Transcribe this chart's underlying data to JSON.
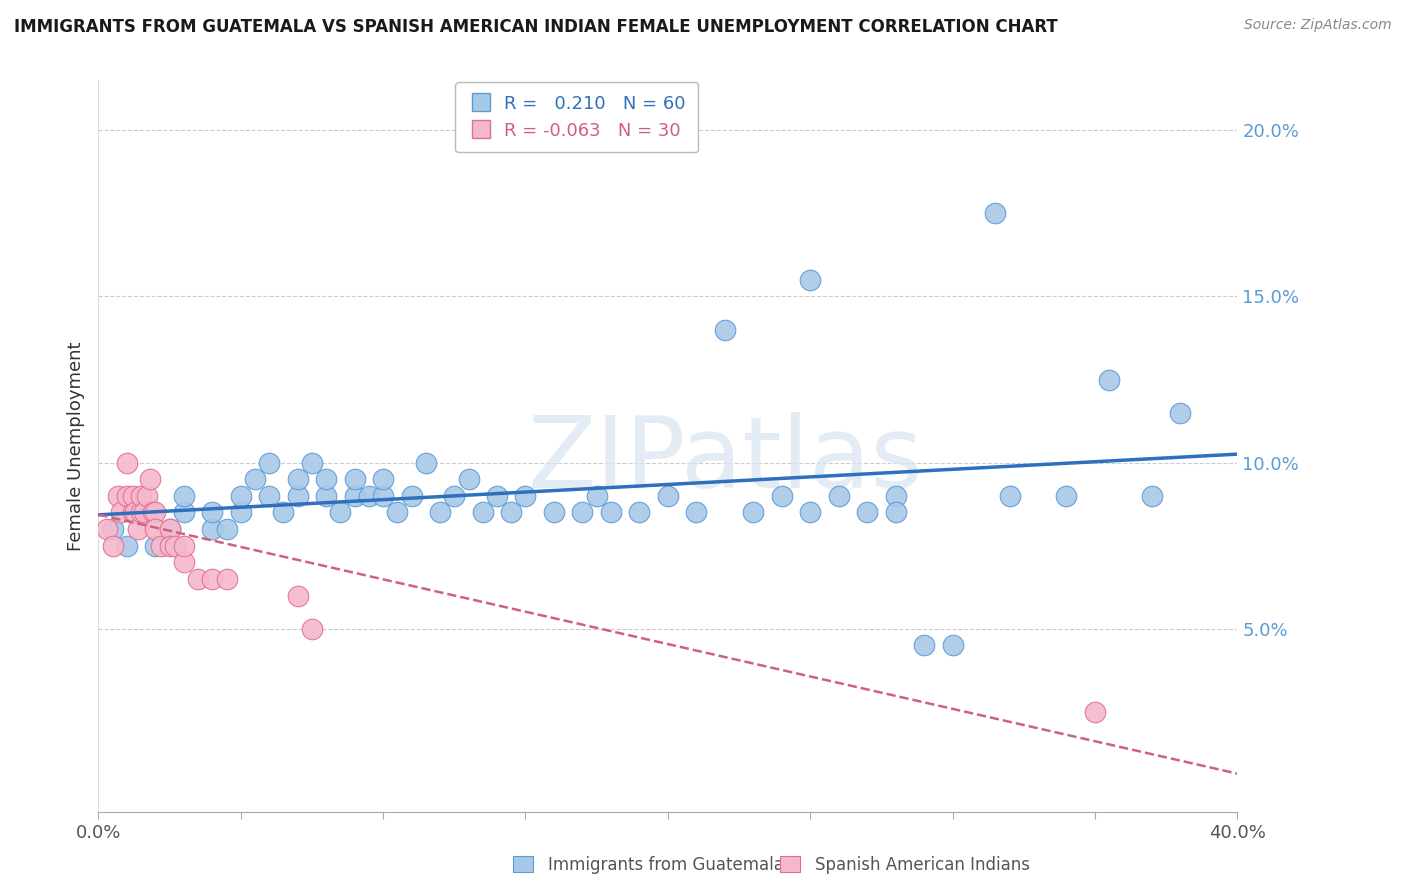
{
  "title": "IMMIGRANTS FROM GUATEMALA VS SPANISH AMERICAN INDIAN FEMALE UNEMPLOYMENT CORRELATION CHART",
  "source": "Source: ZipAtlas.com",
  "ylabel": "Female Unemployment",
  "ytick_vals": [
    0.05,
    0.1,
    0.15,
    0.2
  ],
  "ytick_labels": [
    "5.0%",
    "10.0%",
    "15.0%",
    "20.0%"
  ],
  "xtick_vals": [
    0.0,
    0.05,
    0.1,
    0.15,
    0.2,
    0.25,
    0.3,
    0.35,
    0.4
  ],
  "xlim": [
    0.0,
    0.4
  ],
  "ylim": [
    -0.005,
    0.215
  ],
  "blue_R": 0.21,
  "blue_N": 60,
  "pink_R": -0.063,
  "pink_N": 30,
  "legend_label_blue": "Immigrants from Guatemala",
  "legend_label_pink": "Spanish American Indians",
  "watermark": "ZIPatlas",
  "blue_color": "#a8c8e8",
  "blue_edge_color": "#5b9bd5",
  "blue_line_color": "#2e6fbe",
  "pink_color": "#f5b8cb",
  "pink_edge_color": "#e07090",
  "pink_line_color": "#d06080",
  "background_color": "#ffffff",
  "grid_color": "#cccccc",
  "ytick_color": "#5b9bd5",
  "blue_scatter_x": [
    0.005,
    0.01,
    0.02,
    0.025,
    0.03,
    0.03,
    0.04,
    0.04,
    0.045,
    0.05,
    0.05,
    0.055,
    0.06,
    0.06,
    0.065,
    0.07,
    0.07,
    0.075,
    0.08,
    0.08,
    0.085,
    0.09,
    0.09,
    0.095,
    0.1,
    0.1,
    0.105,
    0.11,
    0.115,
    0.12,
    0.125,
    0.13,
    0.135,
    0.14,
    0.145,
    0.15,
    0.16,
    0.17,
    0.175,
    0.18,
    0.19,
    0.2,
    0.21,
    0.22,
    0.23,
    0.24,
    0.25,
    0.26,
    0.27,
    0.28,
    0.29,
    0.3,
    0.32,
    0.34,
    0.315,
    0.37,
    0.28,
    0.25,
    0.38,
    0.355
  ],
  "blue_scatter_y": [
    0.08,
    0.075,
    0.075,
    0.08,
    0.085,
    0.09,
    0.08,
    0.085,
    0.08,
    0.085,
    0.09,
    0.095,
    0.09,
    0.1,
    0.085,
    0.09,
    0.095,
    0.1,
    0.09,
    0.095,
    0.085,
    0.09,
    0.095,
    0.09,
    0.09,
    0.095,
    0.085,
    0.09,
    0.1,
    0.085,
    0.09,
    0.095,
    0.085,
    0.09,
    0.085,
    0.09,
    0.085,
    0.085,
    0.09,
    0.085,
    0.085,
    0.09,
    0.085,
    0.14,
    0.085,
    0.09,
    0.085,
    0.09,
    0.085,
    0.09,
    0.045,
    0.045,
    0.09,
    0.09,
    0.175,
    0.09,
    0.085,
    0.155,
    0.115,
    0.125
  ],
  "pink_scatter_x": [
    0.003,
    0.005,
    0.007,
    0.008,
    0.01,
    0.01,
    0.012,
    0.012,
    0.013,
    0.014,
    0.015,
    0.015,
    0.016,
    0.017,
    0.018,
    0.019,
    0.02,
    0.02,
    0.022,
    0.025,
    0.025,
    0.027,
    0.03,
    0.03,
    0.035,
    0.04,
    0.045,
    0.07,
    0.075,
    0.35
  ],
  "pink_scatter_y": [
    0.08,
    0.075,
    0.09,
    0.085,
    0.09,
    0.1,
    0.085,
    0.09,
    0.085,
    0.08,
    0.085,
    0.09,
    0.085,
    0.09,
    0.095,
    0.085,
    0.085,
    0.08,
    0.075,
    0.08,
    0.075,
    0.075,
    0.07,
    0.075,
    0.065,
    0.065,
    0.065,
    0.06,
    0.05,
    0.025
  ]
}
